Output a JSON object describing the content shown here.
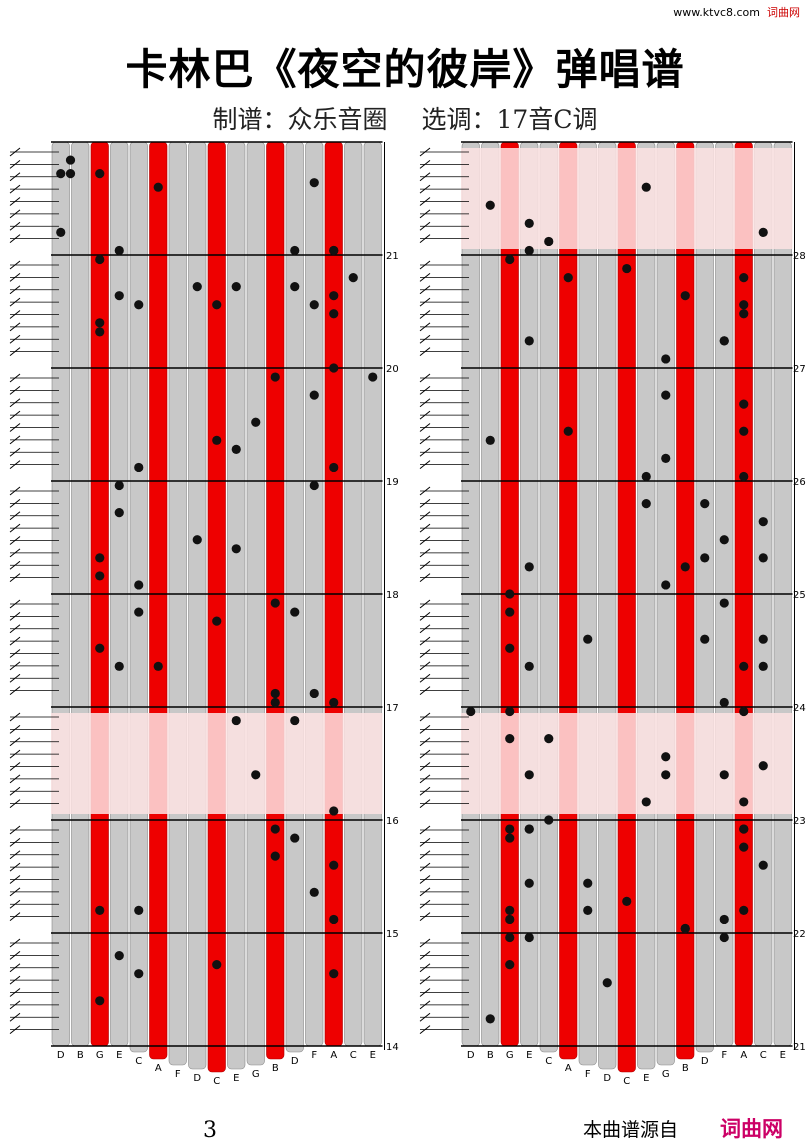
{
  "header": {
    "site_url": "www.ktvc8.com",
    "site_name": "词曲网",
    "title": "卡林巴《夜空的彼岸》弹唱谱",
    "subtitle_left": "制谱：众乐音圈",
    "subtitle_right": "选调：17音C调"
  },
  "footer": {
    "page_number": "3",
    "note": "本曲谱源自",
    "brand": "词曲网"
  },
  "instrument": {
    "key_labels": [
      "D",
      "B",
      "G",
      "E",
      "C",
      "A",
      "F",
      "D",
      "C",
      "E",
      "G",
      "B",
      "D",
      "F",
      "A",
      "C",
      "E"
    ],
    "red_key_indices": [
      2,
      5,
      8,
      11,
      14
    ],
    "colors": {
      "red_key": "#ee0000",
      "grey_key": "#c8c8c8",
      "highlight": "#fde3e3",
      "note": "#111111"
    }
  },
  "columns": [
    {
      "id": "left",
      "measures": [
        {
          "number": "14",
          "highlight": false
        },
        {
          "number": "15",
          "highlight": false
        },
        {
          "number": "16",
          "highlight": true
        },
        {
          "number": "17",
          "highlight": false
        },
        {
          "number": "18",
          "highlight": false
        },
        {
          "number": "19",
          "highlight": false
        },
        {
          "number": "20",
          "highlight": false
        },
        {
          "number": "21",
          "highlight": false
        }
      ],
      "notes": [
        [
          0,
          0.035
        ],
        [
          0.5,
          0.035
        ],
        [
          2,
          0.035
        ],
        [
          0.5,
          0.02
        ],
        [
          13,
          0.045
        ],
        [
          14,
          0.12
        ],
        [
          12,
          0.12
        ],
        [
          4,
          0.18
        ],
        [
          7,
          0.16
        ],
        [
          8,
          0.18
        ],
        [
          14,
          0.12
        ],
        [
          16,
          0.26
        ],
        [
          3,
          0.41
        ],
        [
          7,
          0.44
        ],
        [
          2,
          0.56
        ],
        [
          5,
          0.58
        ],
        [
          11,
          0.62
        ],
        [
          9,
          0.64
        ],
        [
          14,
          0.74
        ],
        [
          14,
          0.86
        ],
        [
          14,
          0.62
        ],
        [
          3,
          0.12
        ],
        [
          2,
          0.2
        ],
        [
          5,
          0.05
        ],
        [
          2,
          0.95
        ],
        [
          2,
          0.21
        ],
        [
          11,
          0.26
        ],
        [
          3,
          0.58
        ],
        [
          9,
          0.45
        ],
        [
          14,
          0.92
        ],
        [
          14,
          0.8
        ],
        [
          2,
          0.85
        ],
        [
          3,
          0.17
        ],
        [
          9,
          0.34
        ],
        [
          2,
          0.46
        ],
        [
          4,
          0.52
        ],
        [
          13,
          0.38
        ],
        [
          14,
          0.19
        ],
        [
          12,
          0.52
        ],
        [
          11,
          0.61
        ],
        [
          13,
          0.61
        ],
        [
          12,
          0.77
        ],
        [
          4,
          0.92
        ],
        [
          11,
          0.76
        ],
        [
          10,
          0.7
        ],
        [
          11,
          0.51
        ],
        [
          8,
          0.33
        ],
        [
          12,
          0.16
        ],
        [
          3,
          0.9
        ],
        [
          12,
          0.64
        ],
        [
          4,
          0.36
        ],
        [
          4,
          0.85
        ],
        [
          10,
          0.31
        ],
        [
          8,
          0.53
        ],
        [
          9,
          0.16
        ],
        [
          2,
          0.48
        ],
        [
          13,
          0.18
        ],
        [
          0,
          0.1
        ],
        [
          14,
          0.17
        ],
        [
          14,
          0.25
        ],
        [
          15,
          0.15
        ],
        [
          2,
          0.13
        ],
        [
          11,
          0.79
        ],
        [
          14,
          0.36
        ],
        [
          13,
          0.83
        ],
        [
          3,
          0.38
        ],
        [
          4,
          0.49
        ],
        [
          13,
          0.28
        ],
        [
          8,
          0.91
        ]
      ]
    },
    {
      "id": "right",
      "measures": [
        {
          "number": "21",
          "highlight": false
        },
        {
          "number": "22",
          "highlight": false
        },
        {
          "number": "23",
          "highlight": true
        },
        {
          "number": "24",
          "highlight": false
        },
        {
          "number": "25",
          "highlight": false
        },
        {
          "number": "26",
          "highlight": false
        },
        {
          "number": "27",
          "highlight": false
        },
        {
          "number": "28",
          "highlight": true
        }
      ],
      "notes": [
        [
          1,
          0.07
        ],
        [
          15,
          0.55
        ],
        [
          5,
          0.32
        ],
        [
          12,
          0.4
        ],
        [
          11,
          0.47
        ],
        [
          2,
          0.86
        ],
        [
          10,
          0.24
        ],
        [
          14,
          0.58
        ],
        [
          13,
          0.7
        ],
        [
          2,
          0.56
        ],
        [
          5,
          0.15
        ],
        [
          15,
          0.1
        ],
        [
          15,
          0.8
        ],
        [
          15,
          0.69
        ],
        [
          15,
          0.58
        ],
        [
          15,
          0.46
        ],
        [
          1,
          0.33
        ],
        [
          3,
          0.47
        ],
        [
          4,
          0.66
        ],
        [
          14,
          0.85
        ],
        [
          14,
          0.73
        ],
        [
          14,
          0.19
        ],
        [
          2,
          0.52
        ],
        [
          13,
          0.22
        ],
        [
          8,
          0.84
        ],
        [
          13,
          0.44
        ],
        [
          13,
          0.88
        ],
        [
          15,
          0.42
        ],
        [
          14,
          0.32
        ],
        [
          14,
          0.76
        ],
        [
          6,
          0.85
        ],
        [
          4,
          0.75
        ],
        [
          1,
          0.97
        ],
        [
          14,
          0.63
        ],
        [
          14,
          0.37
        ],
        [
          14,
          0.15
        ],
        [
          13,
          0.86
        ],
        [
          10,
          0.7
        ],
        [
          3,
          0.76
        ],
        [
          2,
          0.85
        ],
        [
          2,
          0.66
        ],
        [
          7,
          0.93
        ],
        [
          14,
          0.29
        ],
        [
          10,
          0.49
        ],
        [
          9,
          0.73
        ],
        [
          14,
          0.76
        ],
        [
          0,
          0.63
        ],
        [
          3,
          0.82
        ],
        [
          3,
          0.7
        ],
        [
          3,
          0.58
        ],
        [
          9,
          0.37
        ],
        [
          10,
          0.28
        ],
        [
          11,
          0.17
        ],
        [
          6,
          0.55
        ],
        [
          8,
          0.14
        ],
        [
          3,
          0.09
        ],
        [
          3,
          0.22
        ],
        [
          2,
          0.91
        ],
        [
          3,
          0.88
        ],
        [
          11,
          0.87
        ],
        [
          14,
          0.78
        ],
        [
          10,
          0.35
        ],
        [
          14,
          0.18
        ],
        [
          13,
          0.62
        ],
        [
          2,
          0.77
        ],
        [
          12,
          0.46
        ],
        [
          6,
          0.82
        ],
        [
          13,
          0.22
        ],
        [
          4,
          0.11
        ],
        [
          2,
          0.88
        ],
        [
          2,
          0.76
        ],
        [
          2,
          0.63
        ],
        [
          2,
          0.5
        ],
        [
          2,
          0.13
        ],
        [
          3,
          0.12
        ],
        [
          9,
          0.4
        ],
        [
          10,
          0.68
        ],
        [
          9,
          0.05
        ],
        [
          11,
          0.87
        ],
        [
          13,
          0.51
        ],
        [
          3,
          0.76
        ],
        [
          12,
          0.55
        ]
      ]
    }
  ]
}
